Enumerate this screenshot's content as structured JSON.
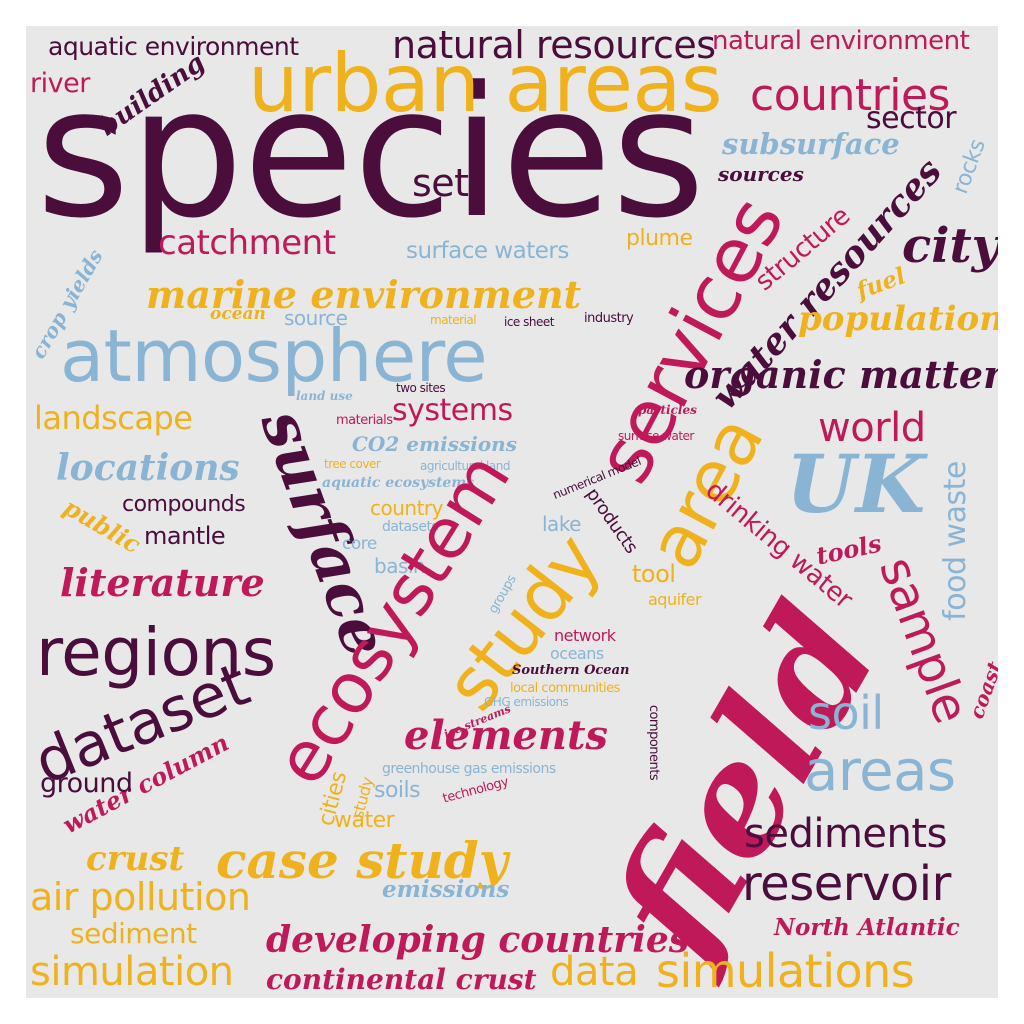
{
  "colors": {
    "plum": "#4a0d3c",
    "crimson": "#c0195a",
    "gold": "#efb21c",
    "blue": "#8ab4d4",
    "background": "#e8e8e8"
  },
  "words": [
    {
      "text": "species",
      "color": "#4a0d3c",
      "style": "sans"
    },
    {
      "text": "urban areas",
      "color": "#efb21c",
      "style": "sans"
    },
    {
      "text": "natural resources",
      "color": "#4a0d3c",
      "style": "sans"
    },
    {
      "text": "natural environment",
      "color": "#c0195a",
      "style": "sans"
    },
    {
      "text": "aquatic environment",
      "color": "#4a0d3c",
      "style": "sans"
    },
    {
      "text": "river",
      "color": "#c0195a",
      "style": "sans"
    },
    {
      "text": "building",
      "color": "#4a0d3c",
      "style": "script"
    },
    {
      "text": "countries",
      "color": "#c0195a",
      "style": "sans"
    },
    {
      "text": "sector",
      "color": "#4a0d3c",
      "style": "sans"
    },
    {
      "text": "subsurface",
      "color": "#8ab4d4",
      "style": "script"
    },
    {
      "text": "sources",
      "color": "#4a0d3c",
      "style": "script"
    },
    {
      "text": "rocks",
      "color": "#8ab4d4",
      "style": "sans"
    },
    {
      "text": "set",
      "color": "#4a0d3c",
      "style": "sans"
    },
    {
      "text": "catchment",
      "color": "#c0195a",
      "style": "sans"
    },
    {
      "text": "surface waters",
      "color": "#8ab4d4",
      "style": "sans"
    },
    {
      "text": "plume",
      "color": "#efb21c",
      "style": "sans"
    },
    {
      "text": "city",
      "color": "#4a0d3c",
      "style": "script"
    },
    {
      "text": "crop yields",
      "color": "#8ab4d4",
      "style": "script"
    },
    {
      "text": "marine environment",
      "color": "#efb21c",
      "style": "script"
    },
    {
      "text": "services",
      "color": "#c0195a",
      "style": "sans"
    },
    {
      "text": "structure",
      "color": "#c0195a",
      "style": "sans"
    },
    {
      "text": "water resources",
      "color": "#4a0d3c",
      "style": "script"
    },
    {
      "text": "fuel",
      "color": "#efb21c",
      "style": "script"
    },
    {
      "text": "ocean",
      "color": "#efb21c",
      "style": "script"
    },
    {
      "text": "source",
      "color": "#8ab4d4",
      "style": "sans"
    },
    {
      "text": "material",
      "color": "#efb21c",
      "style": "sans"
    },
    {
      "text": "ice sheet",
      "color": "#4a0d3c",
      "style": "sans"
    },
    {
      "text": "industry",
      "color": "#4a0d3c",
      "style": "sans"
    },
    {
      "text": "population",
      "color": "#efb21c",
      "style": "script"
    },
    {
      "text": "atmosphere",
      "color": "#8ab4d4",
      "style": "sans"
    },
    {
      "text": "organic matter",
      "color": "#4a0d3c",
      "style": "script"
    },
    {
      "text": "two sites",
      "color": "#4a0d3c",
      "style": "sans"
    },
    {
      "text": "land use",
      "color": "#8ab4d4",
      "style": "script"
    },
    {
      "text": "surface",
      "color": "#4a0d3c",
      "style": "script"
    },
    {
      "text": "landscape",
      "color": "#efb21c",
      "style": "sans"
    },
    {
      "text": "systems",
      "color": "#c0195a",
      "style": "sans"
    },
    {
      "text": "materials",
      "color": "#c0195a",
      "style": "sans"
    },
    {
      "text": "particles",
      "color": "#c0195a",
      "style": "script"
    },
    {
      "text": "world",
      "color": "#c0195a",
      "style": "sans"
    },
    {
      "text": "surface water",
      "color": "#c0195a",
      "style": "sans"
    },
    {
      "text": "CO2 emissions",
      "color": "#8ab4d4",
      "style": "script"
    },
    {
      "text": "locations",
      "color": "#8ab4d4",
      "style": "script"
    },
    {
      "text": "tree cover",
      "color": "#efb21c",
      "style": "sans"
    },
    {
      "text": "agricultural land",
      "color": "#8ab4d4",
      "style": "sans"
    },
    {
      "text": "area",
      "color": "#efb21c",
      "style": "sans"
    },
    {
      "text": "UK",
      "color": "#8ab4d4",
      "style": "script"
    },
    {
      "text": "aquatic ecosystems",
      "color": "#8ab4d4",
      "style": "script"
    },
    {
      "text": "numerical model",
      "color": "#4a0d3c",
      "style": "sans"
    },
    {
      "text": "food waste",
      "color": "#8ab4d4",
      "style": "sans"
    },
    {
      "text": "compounds",
      "color": "#4a0d3c",
      "style": "sans"
    },
    {
      "text": "public",
      "color": "#efb21c",
      "style": "script"
    },
    {
      "text": "country",
      "color": "#efb21c",
      "style": "sans"
    },
    {
      "text": "products",
      "color": "#4a0d3c",
      "style": "sans"
    },
    {
      "text": "drinking water",
      "color": "#c0195a",
      "style": "sans"
    },
    {
      "text": "datasets",
      "color": "#8ab4d4",
      "style": "sans"
    },
    {
      "text": "mantle",
      "color": "#4a0d3c",
      "style": "sans"
    },
    {
      "text": "lake",
      "color": "#8ab4d4",
      "style": "sans"
    },
    {
      "text": "core",
      "color": "#8ab4d4",
      "style": "sans"
    },
    {
      "text": "basin",
      "color": "#8ab4d4",
      "style": "sans"
    },
    {
      "text": "ecosystem",
      "color": "#c0195a",
      "style": "sans"
    },
    {
      "text": "study",
      "color": "#efb21c",
      "style": "sans"
    },
    {
      "text": "sample",
      "color": "#c0195a",
      "style": "sans"
    },
    {
      "text": "tools",
      "color": "#c0195a",
      "style": "script"
    },
    {
      "text": "literature",
      "color": "#c0195a",
      "style": "script"
    },
    {
      "text": "tool",
      "color": "#efb21c",
      "style": "sans"
    },
    {
      "text": "groups",
      "color": "#8ab4d4",
      "style": "sans"
    },
    {
      "text": "aquifer",
      "color": "#efb21c",
      "style": "sans"
    },
    {
      "text": "regions",
      "color": "#4a0d3c",
      "style": "sans"
    },
    {
      "text": "field",
      "color": "#c0195a",
      "style": "script"
    },
    {
      "text": "network",
      "color": "#c0195a",
      "style": "sans"
    },
    {
      "text": "oceans",
      "color": "#8ab4d4",
      "style": "sans"
    },
    {
      "text": "Southern Ocean",
      "color": "#4a0d3c",
      "style": "script"
    },
    {
      "text": "local communities",
      "color": "#efb21c",
      "style": "sans"
    },
    {
      "text": "coast",
      "color": "#c0195a",
      "style": "script"
    },
    {
      "text": "GHG emissions",
      "color": "#8ab4d4",
      "style": "sans"
    },
    {
      "text": "dataset",
      "color": "#4a0d3c",
      "style": "sans"
    },
    {
      "text": "soil",
      "color": "#8ab4d4",
      "style": "sans"
    },
    {
      "text": "ice streams",
      "color": "#c0195a",
      "style": "script"
    },
    {
      "text": "elements",
      "color": "#c0195a",
      "style": "script"
    },
    {
      "text": "components",
      "color": "#4a0d3c",
      "style": "sans"
    },
    {
      "text": "areas",
      "color": "#8ab4d4",
      "style": "sans"
    },
    {
      "text": "water column",
      "color": "#c0195a",
      "style": "script"
    },
    {
      "text": "ground",
      "color": "#4a0d3c",
      "style": "sans"
    },
    {
      "text": "cities",
      "color": "#efb21c",
      "style": "sans"
    },
    {
      "text": "study",
      "color": "#efb21c",
      "style": "sans"
    },
    {
      "text": "greenhouse gas emissions",
      "color": "#8ab4d4",
      "style": "sans"
    },
    {
      "text": "soils",
      "color": "#8ab4d4",
      "style": "sans"
    },
    {
      "text": "technology",
      "color": "#c0195a",
      "style": "sans"
    },
    {
      "text": "water",
      "color": "#efb21c",
      "style": "sans"
    },
    {
      "text": "sediments",
      "color": "#4a0d3c",
      "style": "sans"
    },
    {
      "text": "crust",
      "color": "#efb21c",
      "style": "script"
    },
    {
      "text": "case study",
      "color": "#efb21c",
      "style": "script"
    },
    {
      "text": "reservoir",
      "color": "#4a0d3c",
      "style": "sans"
    },
    {
      "text": "air pollution",
      "color": "#efb21c",
      "style": "sans"
    },
    {
      "text": "emissions",
      "color": "#8ab4d4",
      "style": "script"
    },
    {
      "text": "North Atlantic",
      "color": "#c0195a",
      "style": "script"
    },
    {
      "text": "sediment",
      "color": "#efb21c",
      "style": "sans"
    },
    {
      "text": "developing countries",
      "color": "#c0195a",
      "style": "script"
    },
    {
      "text": "simulation",
      "color": "#efb21c",
      "style": "sans"
    },
    {
      "text": "data",
      "color": "#efb21c",
      "style": "sans"
    },
    {
      "text": "simulations",
      "color": "#efb21c",
      "style": "sans"
    },
    {
      "text": "continental crust",
      "color": "#c0195a",
      "style": "script"
    }
  ]
}
